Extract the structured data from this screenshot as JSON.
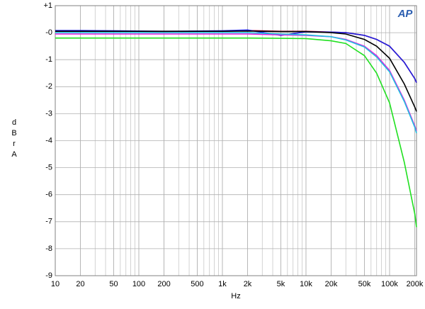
{
  "chart_data": {
    "type": "line",
    "logo": "AP",
    "xlabel": "Hz",
    "ylabel": "dBr A",
    "xscale": "log",
    "grid": true,
    "xlim": [
      10,
      210000
    ],
    "ylim": [
      -9,
      1
    ],
    "xticks": [
      10,
      20,
      50,
      100,
      200,
      500,
      {
        "value": 1000,
        "label": "1k"
      },
      {
        "value": 2000,
        "label": "2k"
      },
      {
        "value": 5000,
        "label": "5k"
      },
      {
        "value": 10000,
        "label": "10k"
      },
      {
        "value": 20000,
        "label": "20k"
      },
      {
        "value": 50000,
        "label": "50k"
      },
      {
        "value": 100000,
        "label": "100k"
      },
      {
        "value": 200000,
        "label": "200k"
      }
    ],
    "yticks": [
      {
        "value": 1,
        "label": "+1"
      },
      {
        "value": 0,
        "label": "-0"
      },
      -1,
      -2,
      -3,
      -4,
      -5,
      -6,
      -7,
      -8,
      -9
    ],
    "x": [
      10,
      20,
      50,
      100,
      200,
      500,
      1000,
      2000,
      5000,
      10000,
      20000,
      30000,
      50000,
      70000,
      100000,
      150000,
      200000,
      210000
    ],
    "series": [
      {
        "color": "#c00030",
        "values": [
          0.05,
          0.05,
          0.06,
          0.05,
          0.04,
          0.05,
          0.05,
          0.08,
          0.05,
          0.05,
          0.02,
          0,
          -0.1,
          -0.25,
          -0.5,
          -1.1,
          -1.7,
          -1.85
        ]
      },
      {
        "color": "#2020e0",
        "values": [
          0.08,
          0.08,
          0.07,
          0.06,
          0.05,
          0.06,
          0.07,
          0.1,
          -0.1,
          0.03,
          0.02,
          0,
          -0.1,
          -0.25,
          -0.5,
          -1.1,
          -1.7,
          -1.85
        ]
      },
      {
        "color": "#000000",
        "values": [
          0.05,
          0.05,
          0.05,
          0.05,
          0.05,
          0.05,
          0.05,
          0.06,
          0.04,
          0.04,
          0,
          -0.05,
          -0.25,
          -0.5,
          -0.95,
          -1.9,
          -2.75,
          -2.92
        ]
      },
      {
        "color": "#e020e0",
        "values": [
          -0.05,
          -0.05,
          -0.05,
          -0.05,
          -0.05,
          -0.05,
          -0.05,
          -0.05,
          -0.08,
          -0.1,
          -0.15,
          -0.25,
          -0.5,
          -0.85,
          -1.4,
          -2.5,
          -3.45,
          -3.65
        ]
      },
      {
        "color": "#20c0e0",
        "values": [
          0,
          0,
          0,
          0,
          0,
          0,
          0,
          0,
          -0.05,
          -0.08,
          -0.15,
          -0.27,
          -0.53,
          -0.9,
          -1.45,
          -2.55,
          -3.5,
          -3.72
        ]
      },
      {
        "color": "#20e020",
        "values": [
          -0.2,
          -0.2,
          -0.2,
          -0.2,
          -0.2,
          -0.2,
          -0.2,
          -0.2,
          -0.21,
          -0.22,
          -0.3,
          -0.4,
          -0.85,
          -1.5,
          -2.6,
          -4.8,
          -6.7,
          -7.2
        ]
      }
    ]
  }
}
